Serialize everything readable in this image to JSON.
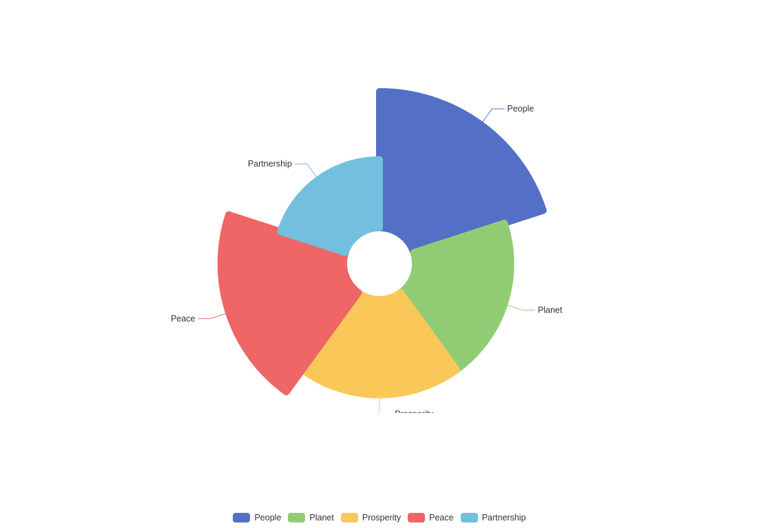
{
  "chart_data": {
    "type": "pie",
    "subtype": "rose",
    "title": "",
    "categories": [
      "People",
      "Planet",
      "Prosperity",
      "Peace",
      "Partnership"
    ],
    "values": [
      100,
      70,
      70,
      90,
      50
    ],
    "colors": [
      "#5470c6",
      "#91cc75",
      "#fac858",
      "#ee6666",
      "#73c0de"
    ],
    "legend_position": "bottom-center"
  }
}
